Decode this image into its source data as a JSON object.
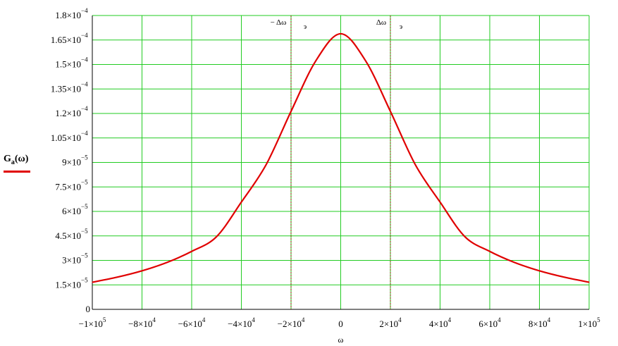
{
  "chart_data": {
    "type": "line",
    "xlabel": "ω",
    "ylabel": {
      "base": "G",
      "sub": "a",
      "arg": "(ω)"
    },
    "xlim": [
      -100000,
      100000
    ],
    "ylim": [
      0,
      0.00018
    ],
    "grid": true,
    "legend": "left",
    "x_ticks": [
      {
        "value": -100000,
        "mant": "−1×10",
        "exp": "5"
      },
      {
        "value": -80000,
        "mant": "−8×10",
        "exp": "4"
      },
      {
        "value": -60000,
        "mant": "−6×10",
        "exp": "4"
      },
      {
        "value": -40000,
        "mant": "−4×10",
        "exp": "4"
      },
      {
        "value": -20000,
        "mant": "−2×10",
        "exp": "4"
      },
      {
        "value": 0,
        "mant": "0",
        "exp": ""
      },
      {
        "value": 20000,
        "mant": "2×10",
        "exp": "4"
      },
      {
        "value": 40000,
        "mant": "4×10",
        "exp": "4"
      },
      {
        "value": 60000,
        "mant": "6×10",
        "exp": "4"
      },
      {
        "value": 80000,
        "mant": "8×10",
        "exp": "4"
      },
      {
        "value": 100000,
        "mant": "1×10",
        "exp": "5"
      }
    ],
    "y_ticks": [
      {
        "value": 0,
        "mant": "0",
        "exp": ""
      },
      {
        "value": 1.5e-05,
        "mant": "1.5×10",
        "exp": "−5"
      },
      {
        "value": 3e-05,
        "mant": "3×10",
        "exp": "−5"
      },
      {
        "value": 4.5e-05,
        "mant": "4.5×10",
        "exp": "−5"
      },
      {
        "value": 6e-05,
        "mant": "6×10",
        "exp": "−5"
      },
      {
        "value": 7.5e-05,
        "mant": "7.5×10",
        "exp": "−5"
      },
      {
        "value": 9e-05,
        "mant": "9×10",
        "exp": "−5"
      },
      {
        "value": 0.000105,
        "mant": "1.05×10",
        "exp": "−4"
      },
      {
        "value": 0.00012,
        "mant": "1.2×10",
        "exp": "−4"
      },
      {
        "value": 0.000135,
        "mant": "1.35×10",
        "exp": "−4"
      },
      {
        "value": 0.00015,
        "mant": "1.5×10",
        "exp": "−4"
      },
      {
        "value": 0.000165,
        "mant": "1.65×10",
        "exp": "−4"
      },
      {
        "value": 0.00018,
        "mant": "1.8×10",
        "exp": "−4"
      }
    ],
    "markers": [
      {
        "x": -20000,
        "label": "− Δω",
        "sub": "э"
      },
      {
        "x": 20000,
        "label": "Δω",
        "sub": "э"
      }
    ],
    "series": [
      {
        "color": "#e00000",
        "x": [
          -100000,
          -90000,
          -80000,
          -70000,
          -60000,
          -50000,
          -40000,
          -30000,
          -20000,
          -10000,
          0,
          10000,
          20000,
          30000,
          40000,
          50000,
          60000,
          70000,
          80000,
          90000,
          100000
        ],
        "y": [
          1.66e-05,
          1.97e-05,
          2.36e-05,
          2.87e-05,
          3.55e-05,
          4.45e-05,
          6.57e-05,
          8.87e-05,
          0.0001213,
          0.0001523,
          0.0001688,
          0.0001523,
          0.0001213,
          8.87e-05,
          6.57e-05,
          4.45e-05,
          3.55e-05,
          2.87e-05,
          2.36e-05,
          1.97e-05,
          1.66e-05
        ]
      }
    ]
  }
}
